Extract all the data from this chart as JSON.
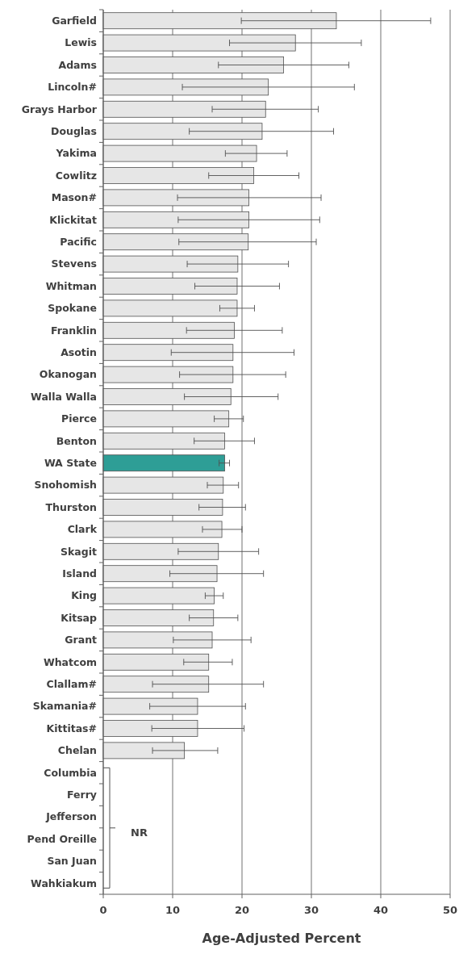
{
  "chart_data": {
    "type": "bar",
    "orientation": "horizontal",
    "categories": [
      "Garfield",
      "Lewis",
      "Adams",
      "Lincoln#",
      "Grays Harbor",
      "Douglas",
      "Yakima",
      "Cowlitz",
      "Mason#",
      "Klickitat",
      "Pacific",
      "Stevens",
      "Whitman",
      "Spokane",
      "Franklin",
      "Asotin",
      "Okanogan",
      "Walla Walla",
      "Pierce",
      "Benton",
      "WA State",
      "Snohomish",
      "Thurston",
      "Clark",
      "Skagit",
      "Island",
      "King",
      "Kitsap",
      "Grant",
      "Whatcom",
      "Clallam#",
      "Skamania#",
      "Kittitas#",
      "Chelan",
      "Columbia",
      "Ferry",
      "Jefferson",
      "Pend Oreille",
      "San Juan",
      "Wahkiakum"
    ],
    "values": [
      33.6,
      27.7,
      26.0,
      23.8,
      23.4,
      22.9,
      22.1,
      21.7,
      21.0,
      21.0,
      20.9,
      19.4,
      19.3,
      19.3,
      18.9,
      18.7,
      18.7,
      18.4,
      18.1,
      17.5,
      17.5,
      17.3,
      17.2,
      17.1,
      16.6,
      16.4,
      16.0,
      15.9,
      15.7,
      15.2,
      15.2,
      13.6,
      13.6,
      11.7,
      null,
      null,
      null,
      null,
      null,
      null
    ],
    "errors": [
      [
        19.9,
        47.2
      ],
      [
        18.2,
        37.2
      ],
      [
        16.6,
        35.4
      ],
      [
        11.4,
        36.2
      ],
      [
        15.7,
        31.0
      ],
      [
        12.4,
        33.2
      ],
      [
        17.6,
        26.5
      ],
      [
        15.2,
        28.2
      ],
      [
        10.7,
        31.4
      ],
      [
        10.8,
        31.2
      ],
      [
        10.9,
        30.7
      ],
      [
        12.1,
        26.7
      ],
      [
        13.2,
        25.4
      ],
      [
        16.8,
        21.8
      ],
      [
        12.0,
        25.8
      ],
      [
        9.8,
        27.5
      ],
      [
        11.0,
        26.3
      ],
      [
        11.7,
        25.2
      ],
      [
        16.0,
        20.2
      ],
      [
        13.1,
        21.8
      ],
      [
        16.7,
        18.2
      ],
      [
        15.0,
        19.5
      ],
      [
        13.8,
        20.5
      ],
      [
        14.3,
        20.0
      ],
      [
        10.8,
        22.4
      ],
      [
        9.6,
        23.1
      ],
      [
        14.7,
        17.3
      ],
      [
        12.4,
        19.4
      ],
      [
        10.1,
        21.3
      ],
      [
        11.6,
        18.6
      ],
      [
        7.1,
        23.1
      ],
      [
        6.7,
        20.5
      ],
      [
        7.0,
        20.3
      ],
      [
        7.1,
        16.5
      ],
      null,
      null,
      null,
      null,
      null,
      null
    ],
    "colors": [
      "#e6e6e6",
      "#e6e6e6",
      "#e6e6e6",
      "#e6e6e6",
      "#e6e6e6",
      "#e6e6e6",
      "#e6e6e6",
      "#e6e6e6",
      "#e6e6e6",
      "#e6e6e6",
      "#e6e6e6",
      "#e6e6e6",
      "#e6e6e6",
      "#e6e6e6",
      "#e6e6e6",
      "#e6e6e6",
      "#e6e6e6",
      "#e6e6e6",
      "#e6e6e6",
      "#e6e6e6",
      "#2e9e96",
      "#e6e6e6",
      "#e6e6e6",
      "#e6e6e6",
      "#e6e6e6",
      "#e6e6e6",
      "#e6e6e6",
      "#e6e6e6",
      "#e6e6e6",
      "#e6e6e6",
      "#e6e6e6",
      "#e6e6e6",
      "#e6e6e6",
      "#e6e6e6",
      null,
      null,
      null,
      null,
      null,
      null
    ],
    "xlim": [
      0,
      50
    ],
    "xticks": [
      0,
      10,
      20,
      30,
      40,
      50
    ],
    "grid": "x",
    "xlabel": "Age-Adjusted Percent",
    "annotations": [
      "NR"
    ]
  }
}
